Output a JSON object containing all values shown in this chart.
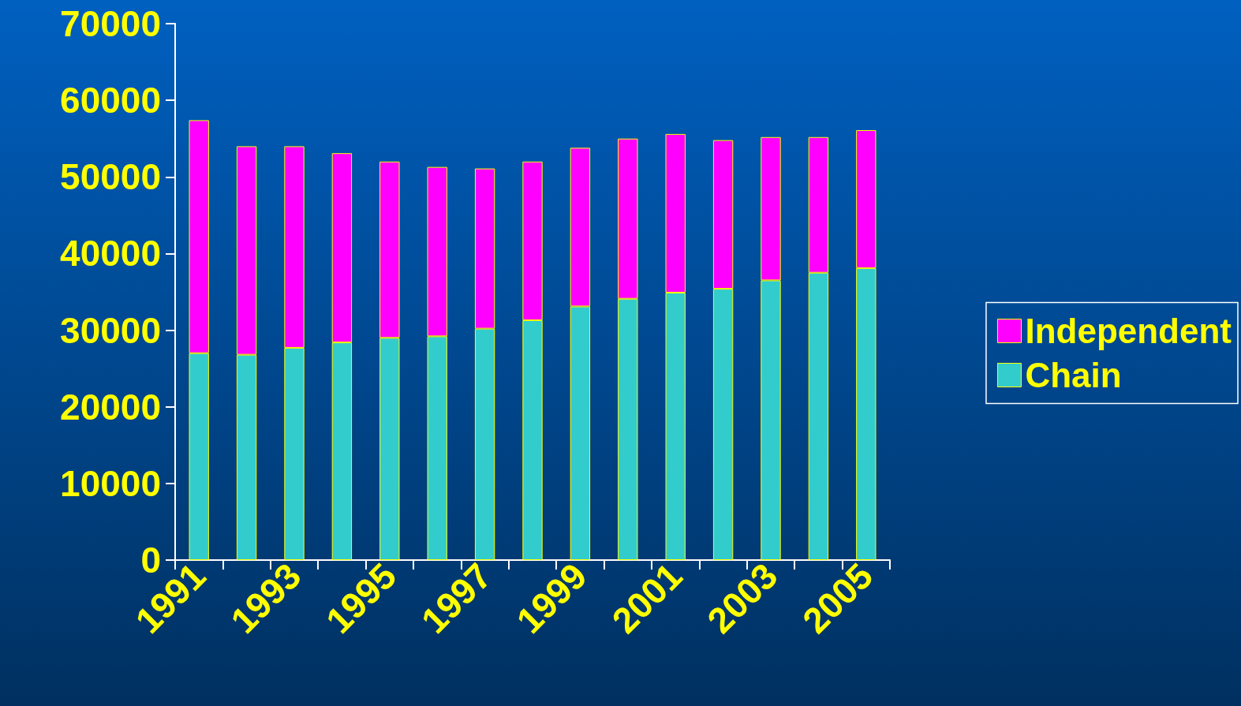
{
  "chart_data": {
    "type": "bar",
    "stacked": true,
    "categories": [
      "1991",
      null,
      "1993",
      null,
      "1995",
      null,
      "1997",
      null,
      "1999",
      null,
      "2001",
      null,
      "2003",
      null,
      "2005"
    ],
    "series": [
      {
        "name": "Chain",
        "color": "#33cccc",
        "values": [
          27000,
          26800,
          27700,
          28400,
          29000,
          29200,
          30200,
          31300,
          33100,
          34100,
          34900,
          35400,
          36500,
          37500,
          38100
        ]
      },
      {
        "name": "Independent",
        "color": "#ff00ff",
        "values": [
          30400,
          27200,
          26300,
          24700,
          23000,
          22100,
          20900,
          20700,
          20700,
          20900,
          20700,
          19400,
          18700,
          17700,
          18000
        ]
      }
    ],
    "ylim": [
      0,
      70000
    ],
    "yticks": [
      0,
      10000,
      20000,
      30000,
      40000,
      50000,
      60000,
      70000
    ],
    "grid": false,
    "legend": "right"
  }
}
